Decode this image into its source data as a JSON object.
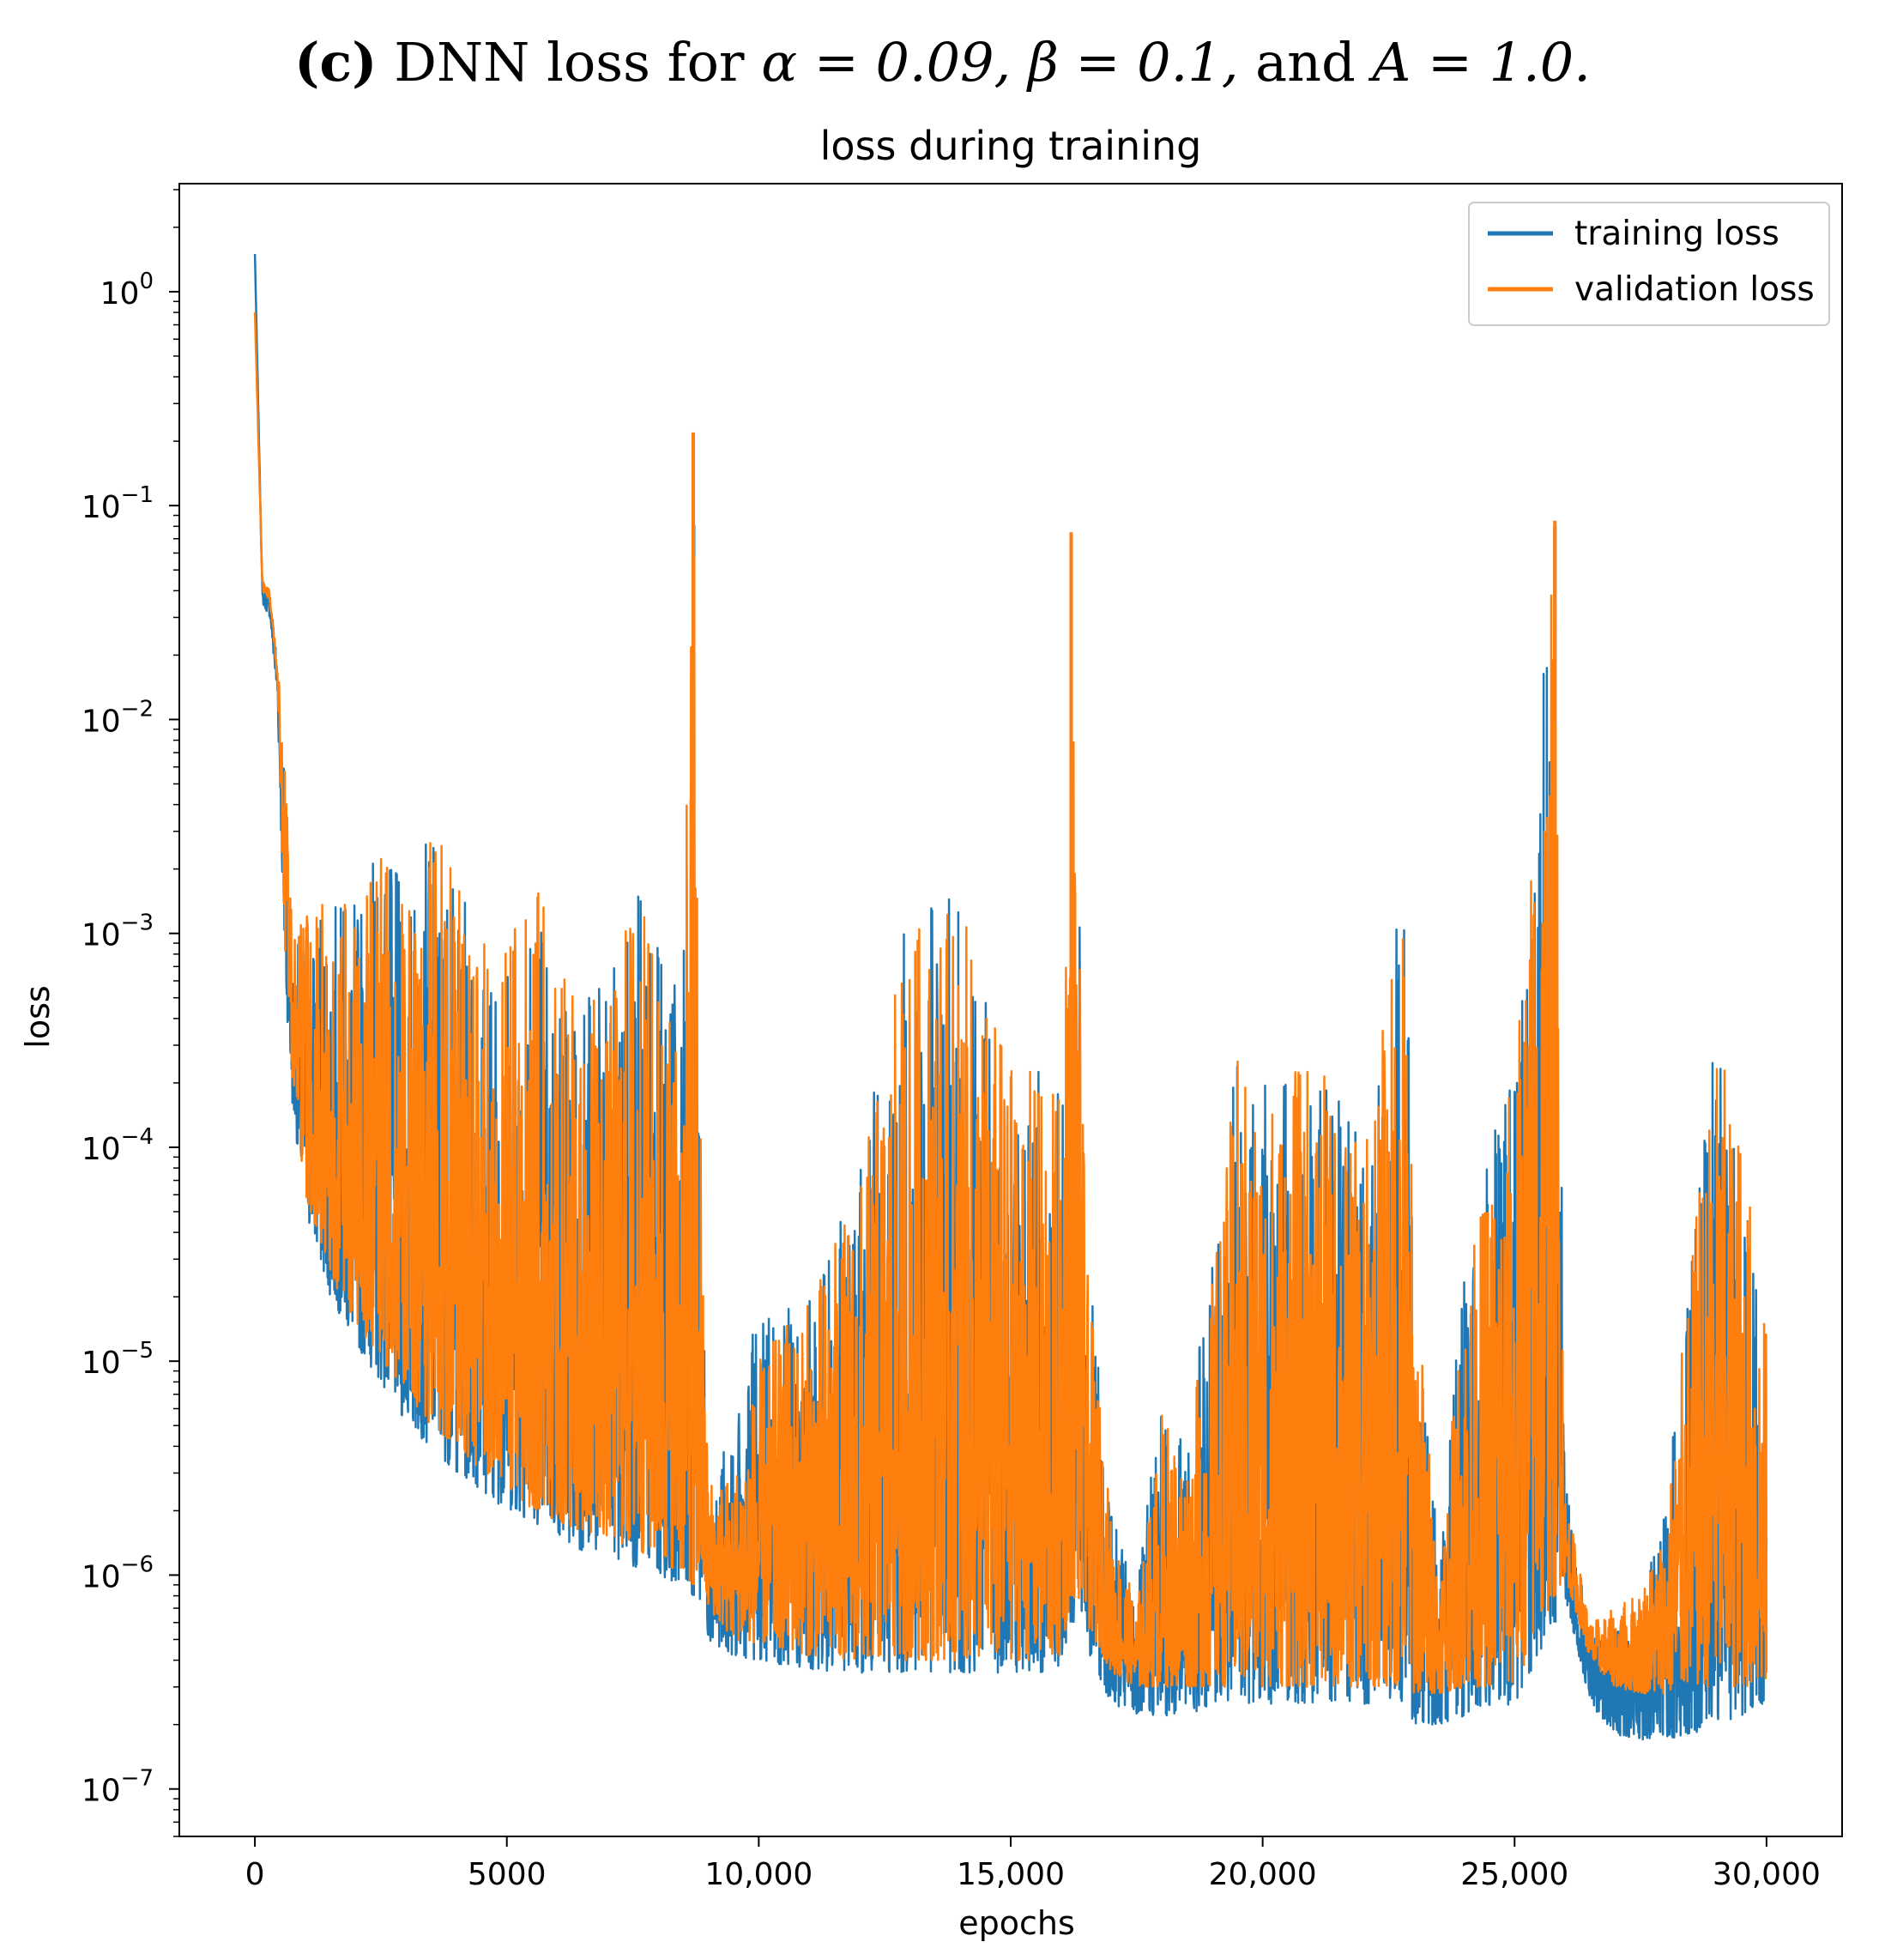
{
  "caption": {
    "label": "(c)",
    "text_before": " DNN loss for ",
    "math_alpha": "α = 0.09, β = 0.1,",
    "text_and": " and ",
    "math_A": "A = 1.0."
  },
  "chart_data": {
    "type": "line",
    "title": "loss during training",
    "xlabel": "epochs",
    "ylabel": "loss",
    "xscale": "linear",
    "yscale": "log",
    "xlim": [
      -1500,
      31500
    ],
    "ylim": [
      6e-08,
      3.2
    ],
    "x_ticks": [
      0,
      5000,
      10000,
      15000,
      20000,
      25000,
      30000
    ],
    "x_tick_labels": [
      "0",
      "5000",
      "10,000",
      "15,000",
      "20,000",
      "25,000",
      "30,000"
    ],
    "y_ticks_exp": [
      0,
      -1,
      -2,
      -3,
      -4,
      -5,
      -6,
      -7
    ],
    "y_tick_labels": [
      {
        "base": "10",
        "exp": "0"
      },
      {
        "base": "10",
        "exp": "−1"
      },
      {
        "base": "10",
        "exp": "−2"
      },
      {
        "base": "10",
        "exp": "−3"
      },
      {
        "base": "10",
        "exp": "−4"
      },
      {
        "base": "10",
        "exp": "−5"
      },
      {
        "base": "10",
        "exp": "−6"
      },
      {
        "base": "10",
        "exp": "−7"
      }
    ],
    "legend": {
      "placement": "upper-right",
      "entries": [
        "training loss",
        "validation loss"
      ]
    },
    "series": [
      {
        "name": "training loss",
        "color": "#1f77b4",
        "x": [
          0,
          150,
          300,
          450,
          600,
          750,
          1000,
          1500,
          2000,
          2500,
          3000,
          3500,
          4000,
          4500,
          5000,
          5500,
          6000,
          6500,
          7000,
          7500,
          8000,
          8500,
          8700,
          8900,
          9000,
          9500,
          10000,
          10500,
          11000,
          12000,
          13000,
          14000,
          15000,
          16000,
          16200,
          16500,
          17000,
          17500,
          18000,
          18500,
          19000,
          19500,
          20000,
          21000,
          22000,
          22800,
          23000,
          23500,
          24000,
          25000,
          25800,
          26000,
          26500,
          27000,
          27500,
          28000,
          28500,
          29000,
          29500,
          30000
        ],
        "base": [
          1.5,
          0.035,
          0.03,
          0.012,
          0.0006,
          0.00015,
          5e-05,
          2e-05,
          1.2e-05,
          8e-06,
          5e-06,
          4e-06,
          3e-06,
          2.5e-06,
          2e-06,
          1.8e-06,
          1.5e-06,
          1.3e-06,
          1.2e-06,
          1.1e-06,
          1e-06,
          9e-07,
          8e-07,
          7e-07,
          5e-07,
          4.2e-07,
          4e-07,
          3.8e-07,
          3.6e-07,
          3.5e-07,
          3.5e-07,
          3.5e-07,
          3.5e-07,
          3.5e-07,
          6e-07,
          4.5e-07,
          2.5e-07,
          2.2e-07,
          2.2e-07,
          2.2e-07,
          2.5e-07,
          2.5e-07,
          2.5e-07,
          2.5e-07,
          2.5e-07,
          2.5e-07,
          2e-07,
          2e-07,
          2.2e-07,
          2.5e-07,
          6e-07,
          8e-07,
          2.5e-07,
          1.8e-07,
          1.7e-07,
          1.7e-07,
          1.8e-07,
          2e-07,
          2.2e-07,
          2.5e-07
        ],
        "top": [
          1.5,
          0.04,
          0.04,
          0.02,
          0.006,
          0.0008,
          0.0011,
          0.0014,
          0.0015,
          0.003,
          0.0015,
          0.0032,
          0.0018,
          0.001,
          0.0009,
          0.0024,
          0.0008,
          0.0008,
          0.0005,
          0.002,
          0.0009,
          0.0006,
          0.21,
          2e-05,
          3.5e-06,
          4e-06,
          2e-05,
          2e-05,
          2e-05,
          8e-05,
          0.0014,
          0.0015,
          0.0003,
          0.0002,
          0.07,
          4e-05,
          2e-06,
          8e-07,
          8e-06,
          5e-06,
          3e-05,
          0.0003,
          0.0002,
          0.0003,
          0.0001,
          0.002,
          5e-05,
          1.2e-06,
          3e-05,
          0.0003,
          0.08,
          3e-06,
          5e-07,
          6e-07,
          8e-07,
          2e-06,
          4e-05,
          0.00035,
          0.00015,
          1.5e-05
        ]
      },
      {
        "name": "validation loss",
        "color": "#ff7f0e",
        "x": [
          0,
          150,
          300,
          450,
          600,
          750,
          1000,
          1500,
          2000,
          2500,
          3000,
          3500,
          4000,
          4500,
          5000,
          5500,
          6000,
          6500,
          7000,
          7500,
          8000,
          8500,
          8700,
          8900,
          9000,
          9500,
          10000,
          10500,
          11000,
          12000,
          13000,
          14000,
          15000,
          16000,
          16200,
          16500,
          17000,
          17500,
          18000,
          18500,
          19000,
          19500,
          20000,
          21000,
          22000,
          22800,
          23000,
          23500,
          24000,
          25000,
          25800,
          26000,
          26500,
          27000,
          27500,
          28000,
          28500,
          29000,
          29500,
          30000
        ],
        "base": [
          0.8,
          0.04,
          0.035,
          0.015,
          0.0008,
          0.0002,
          6e-05,
          2.5e-05,
          1.5e-05,
          1e-05,
          7e-06,
          5e-06,
          4e-06,
          3e-06,
          2.5e-06,
          2e-06,
          1.8e-06,
          1.6e-06,
          1.5e-06,
          1.3e-06,
          1.2e-06,
          1e-06,
          9e-07,
          8e-07,
          7e-07,
          5e-07,
          4.8e-07,
          4.5e-07,
          4.2e-07,
          4e-07,
          4e-07,
          4e-07,
          4e-07,
          4e-07,
          8e-07,
          6e-07,
          3.5e-07,
          3e-07,
          3e-07,
          3e-07,
          3e-07,
          3e-07,
          3e-07,
          3e-07,
          3e-07,
          3e-07,
          2.8e-07,
          2.8e-07,
          3e-07,
          3e-07,
          8e-07,
          1e-06,
          4e-07,
          3e-07,
          2.8e-07,
          2.8e-07,
          3e-07,
          3e-07,
          3e-07,
          3e-07
        ],
        "top": [
          0.8,
          0.045,
          0.04,
          0.018,
          0.007,
          0.001,
          0.0012,
          0.0015,
          0.0013,
          0.0032,
          0.0013,
          0.0035,
          0.0017,
          0.001,
          0.0008,
          0.0025,
          0.0007,
          0.0007,
          0.0004,
          0.0021,
          0.0008,
          0.0005,
          0.22,
          2e-05,
          3e-06,
          3e-06,
          1e-05,
          1.5e-05,
          2e-05,
          7e-05,
          0.0012,
          0.0013,
          0.00027,
          0.00018,
          0.075,
          3e-05,
          1.8e-06,
          7e-07,
          6e-06,
          4e-06,
          2.5e-05,
          0.00028,
          0.00018,
          0.00028,
          9e-05,
          0.002,
          4e-05,
          1e-06,
          2.5e-05,
          0.00025,
          0.085,
          2.5e-06,
          6e-07,
          7e-07,
          9e-07,
          1.8e-06,
          3e-05,
          0.00032,
          0.00014,
          1.4e-05
        ]
      }
    ]
  }
}
